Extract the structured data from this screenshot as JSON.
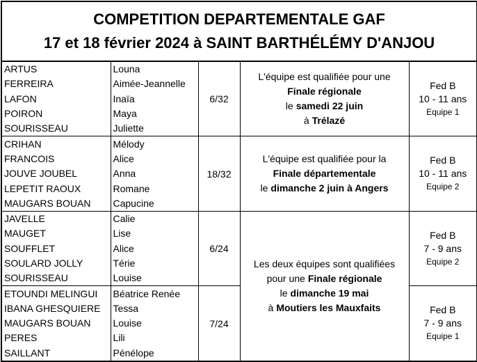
{
  "header": {
    "line1": "COMPETITION DEPARTEMENTALE GAF",
    "line2": "17 et 18 février 2024 à SAINT BARTHÉLÉMY D'ANJOU"
  },
  "teams": [
    {
      "members": [
        {
          "last": "ARTUS",
          "first": "Louna"
        },
        {
          "last": "FERREIRA",
          "first": "Aimée-Jeannelle"
        },
        {
          "last": "LAFON",
          "first": "Inaïa"
        },
        {
          "last": "POIRON",
          "first": "Maya"
        },
        {
          "last": "SOURISSEAU",
          "first": "Juliette"
        }
      ],
      "rank": "6/32",
      "category": {
        "level": "Fed B",
        "ages": "10 - 11 ans",
        "team": "Equipe 1"
      }
    },
    {
      "members": [
        {
          "last": "CRIHAN",
          "first": "Mélody"
        },
        {
          "last": "FRANCOIS",
          "first": "Alice"
        },
        {
          "last": "JOUVE JOUBEL",
          "first": "Anna"
        },
        {
          "last": "LEPETIT RAOUX",
          "first": "Romane"
        },
        {
          "last": "MAUGARS BOUAN",
          "first": "Capucine"
        }
      ],
      "rank": "18/32",
      "category": {
        "level": "Fed B",
        "ages": "10 - 11 ans",
        "team": "Equipe 2"
      }
    },
    {
      "members": [
        {
          "last": "JAVELLE",
          "first": "Calie"
        },
        {
          "last": "MAUGET",
          "first": "Lise"
        },
        {
          "last": "SOUFFLET",
          "first": "Alice"
        },
        {
          "last": "SOULARD JOLLY",
          "first": "Térie"
        },
        {
          "last": "SOURISSEAU",
          "first": "Louise"
        }
      ],
      "rank": "6/24",
      "category": {
        "level": "Fed B",
        "ages": "7 - 9 ans",
        "team": "Equipe 2"
      }
    },
    {
      "members": [
        {
          "last": "ETOUNDI MELINGUI",
          "first": "Béatrice Renée"
        },
        {
          "last": "IBANA GHESQUIERE",
          "first": "Tessa"
        },
        {
          "last": "MAUGARS BOUAN",
          "first": "Louise"
        },
        {
          "last": "PERES",
          "first": "Lili"
        },
        {
          "last": "SAILLANT",
          "first": "Pénélope"
        }
      ],
      "rank": "7/24",
      "category": {
        "level": "Fed B",
        "ages": "7 - 9 ans",
        "team": "Equipe 1"
      }
    }
  ],
  "qualifications": [
    {
      "lines": [
        {
          "normal": "L'équipe est qualifiée pour une"
        },
        {
          "bold": "Finale régionale"
        },
        {
          "normal": "le",
          "bold": "samedi 22 juin"
        },
        {
          "normal": "à",
          "bold": "Trélazé"
        }
      ]
    },
    {
      "lines": [
        {
          "normal": "L'équipe est qualifiée pour la"
        },
        {
          "bold": "Finale départementale"
        },
        {
          "normal": "le",
          "bold": "dimanche 2 juin à Angers"
        }
      ]
    },
    {
      "lines": [
        {
          "normal": "Les deux équipes sont qualifiées"
        },
        {
          "normal": "pour une",
          "bold": "Finale régionale"
        },
        {
          "normal": "le",
          "bold": "dimanche 19 mai"
        },
        {
          "normal": "à",
          "bold": "Moutiers les Mauxfaits"
        }
      ]
    }
  ]
}
